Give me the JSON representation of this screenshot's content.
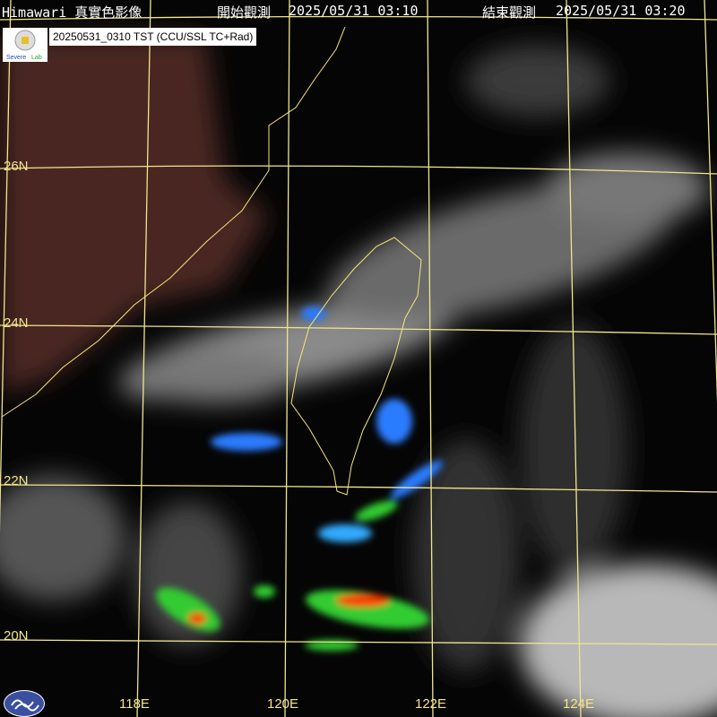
{
  "header": {
    "product": "Himawari 真實色影像",
    "start_label": "開始觀測",
    "start_time": "2025/05/31 03:10",
    "end_label": "結束觀測",
    "end_time": "2025/05/31 03:20"
  },
  "caption": "20250531_0310 TST (CCU/SSL TC+Rad)",
  "logos": {
    "lab_logo": "Severe Storms Lab",
    "agency_logo": "cwa-logo"
  },
  "latitudes": [
    "26N",
    "24N",
    "22N",
    "20N"
  ],
  "longitudes": [
    "118E",
    "120E",
    "122E",
    "124E"
  ],
  "colors": {
    "grid": "#f0e68c",
    "coast": "#f5e67a",
    "land": "#5a2a28",
    "radar_low": "#2b7bff",
    "radar_mid": "#33cc33",
    "radar_high": "#ff3300"
  }
}
